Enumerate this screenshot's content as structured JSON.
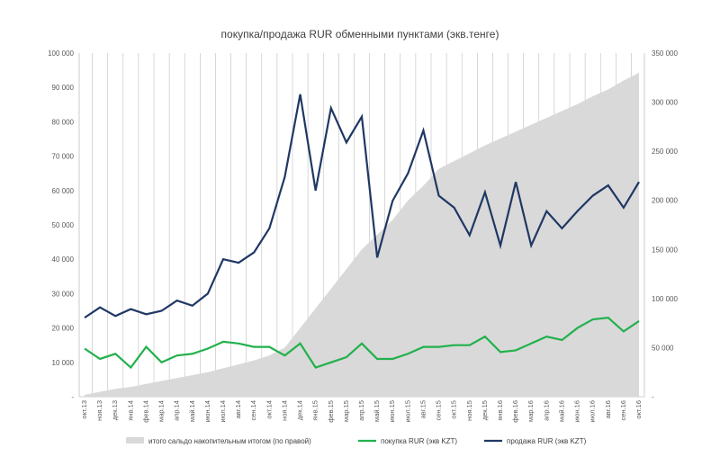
{
  "chart_data": {
    "type": "line",
    "title": "покупка/продажа RUR обменными пунктами (экв.тенге)",
    "categories": [
      "окт.13",
      "ноя.13",
      "дек.13",
      "янв.14",
      "фев.14",
      "мар.14",
      "апр.14",
      "май.14",
      "июн.14",
      "июл.14",
      "авг.14",
      "сен.14",
      "окт.14",
      "ноя.14",
      "дек.14",
      "янв.15",
      "фев.15",
      "мар.15",
      "апр.15",
      "май.15",
      "июн.15",
      "июл.15",
      "авг.15",
      "сен.15",
      "окт.15",
      "ноя.15",
      "дек.15",
      "янв.16",
      "фев.16",
      "мар.16",
      "апр.16",
      "май.16",
      "июн.16",
      "июл.16",
      "авг.16",
      "сен.16",
      "окт.16"
    ],
    "left_axis": {
      "ylim": [
        0,
        100000
      ],
      "ticks": [
        "-",
        "10 000",
        "20 000",
        "30 000",
        "40 000",
        "50 000",
        "60 000",
        "70 000",
        "80 000",
        "90 000",
        "100 000"
      ]
    },
    "right_axis": {
      "ylim": [
        0,
        350000
      ],
      "ticks": [
        "-",
        "50 000",
        "100 000",
        "150 000",
        "200 000",
        "250 000",
        "300 000",
        "350 000"
      ]
    },
    "grid": "vertical",
    "legend": "bottom",
    "series": [
      {
        "name": "итого сальдо накопительным итогом (по правой)",
        "kind": "area",
        "axis": "right",
        "color": "#d9d9d9",
        "values": [
          2000,
          5000,
          8000,
          10000,
          13000,
          16000,
          19000,
          22000,
          25000,
          29000,
          33000,
          37000,
          42000,
          50000,
          70000,
          90000,
          110000,
          130000,
          150000,
          165000,
          180000,
          200000,
          215000,
          232000,
          240000,
          248000,
          256000,
          263000,
          270000,
          277000,
          284000,
          291000,
          298000,
          306000,
          313000,
          322000,
          330000
        ]
      },
      {
        "name": "покупка RUR (экв KZT)",
        "kind": "line",
        "axis": "left",
        "color": "#22b14c",
        "values": [
          14000,
          11000,
          12500,
          8500,
          14500,
          10000,
          12000,
          12500,
          14000,
          16000,
          15500,
          14500,
          14500,
          12000,
          15500,
          8500,
          10000,
          11500,
          15500,
          11000,
          11000,
          12500,
          14500,
          14500,
          15000,
          15000,
          17500,
          13000,
          13500,
          15500,
          17500,
          16500,
          20000,
          22500,
          23000,
          19000,
          22000
        ]
      },
      {
        "name": "продажа RUR (экв KZT)",
        "kind": "line",
        "axis": "left",
        "color": "#1f3864",
        "values": [
          23000,
          26000,
          23500,
          25500,
          24000,
          25000,
          28000,
          26500,
          30000,
          40000,
          39000,
          42000,
          49000,
          64000,
          88000,
          60000,
          84000,
          74000,
          81500,
          40500,
          57000,
          65000,
          77500,
          58500,
          55000,
          47000,
          59500,
          44000,
          62500,
          44000,
          54000,
          49000,
          54000,
          58500,
          61500,
          55000,
          62500
        ]
      }
    ]
  }
}
